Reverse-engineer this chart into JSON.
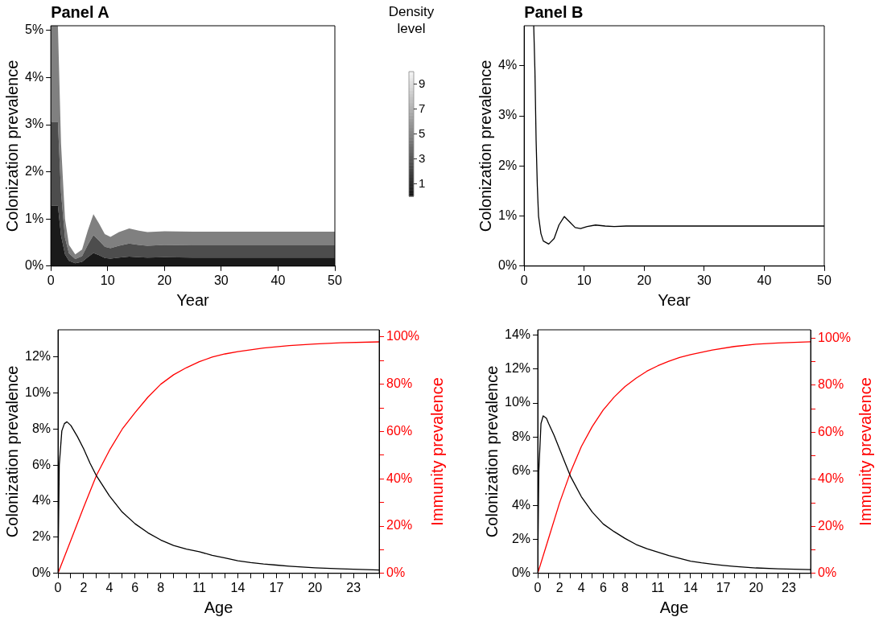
{
  "chart_data": [
    {
      "type": "area",
      "title": "Panel A",
      "xlabel": "Year",
      "ylabel": "Colonization prevalence",
      "stacked": true,
      "clabel": "Density level",
      "clim": [
        0,
        10
      ],
      "cticks": [
        1,
        3,
        5,
        7,
        9
      ],
      "x": [
        0,
        1.25,
        1.8,
        2.5,
        3.2,
        4.3,
        5.5,
        6.5,
        7.5,
        8.5,
        9.5,
        10.5,
        12,
        13.8,
        15.5,
        17,
        20,
        25,
        50
      ],
      "series": [
        {
          "color": "#1a1a1a",
          "values": [
            1.28,
            1.28,
            0.65,
            0.25,
            0.11,
            0.06,
            0.09,
            0.19,
            0.28,
            0.23,
            0.17,
            0.16,
            0.18,
            0.2,
            0.19,
            0.18,
            0.19,
            0.18,
            0.18
          ]
        },
        {
          "color": "#4d4d4d",
          "values": [
            1.78,
            1.78,
            0.91,
            0.35,
            0.16,
            0.09,
            0.12,
            0.26,
            0.38,
            0.31,
            0.24,
            0.22,
            0.25,
            0.28,
            0.26,
            0.25,
            0.26,
            0.26,
            0.26
          ]
        },
        {
          "color": "#808080",
          "values": [
            2.04,
            2.04,
            1.04,
            0.4,
            0.18,
            0.1,
            0.14,
            0.3,
            0.44,
            0.36,
            0.27,
            0.24,
            0.29,
            0.32,
            0.3,
            0.29,
            0.29,
            0.29,
            0.29
          ]
        }
      ],
      "xlim": [
        0,
        50
      ],
      "xticks": [
        0,
        10,
        20,
        30,
        40,
        50
      ],
      "ylim": [
        0,
        5.1
      ],
      "yticks": [
        {
          "value": 0,
          "label": "0%"
        },
        {
          "value": 1,
          "label": "1%"
        },
        {
          "value": 2,
          "label": "2%"
        },
        {
          "value": 3,
          "label": "3%"
        },
        {
          "value": 4,
          "label": "4%"
        },
        {
          "value": 5,
          "label": "5%"
        }
      ]
    },
    {
      "type": "line",
      "title": "Panel B",
      "xlabel": "Year",
      "ylabel": "Colonization prevalence",
      "series": [
        {
          "color": "#000000",
          "x": [
            1.6,
            1.8,
            2.0,
            2.2,
            2.4,
            2.8,
            3.2,
            4.1,
            5,
            5.8,
            6.7,
            7.6,
            8.5,
            9.4,
            10.5,
            11.9,
            13.5,
            15,
            17,
            50
          ],
          "values": [
            4.8,
            3.9,
            2.5,
            1.6,
            1.0,
            0.65,
            0.5,
            0.44,
            0.55,
            0.82,
            0.99,
            0.88,
            0.77,
            0.75,
            0.79,
            0.82,
            0.8,
            0.79,
            0.8,
            0.8
          ]
        }
      ],
      "xlim": [
        0,
        50
      ],
      "xticks": [
        0,
        10,
        20,
        30,
        40,
        50
      ],
      "ylim": [
        0,
        4.8
      ],
      "yticks": [
        {
          "value": 0,
          "label": "0%"
        },
        {
          "value": 1,
          "label": "1%"
        },
        {
          "value": 2,
          "label": "2%"
        },
        {
          "value": 3,
          "label": "3%"
        },
        {
          "value": 4,
          "label": "4%"
        }
      ]
    },
    {
      "type": "line",
      "xlabel": "Age",
      "ylabel": "Colonization prevalence",
      "y2label": "Immunity prevalence",
      "series": [
        {
          "color": "#000000",
          "x": [
            0,
            0.1,
            0.3,
            0.5,
            0.7,
            1,
            1.5,
            2,
            2.5,
            3,
            4,
            5,
            6,
            7,
            8,
            9,
            10,
            11,
            12,
            13,
            14,
            15,
            16,
            17,
            18,
            19,
            20,
            22,
            25
          ],
          "values": [
            0,
            6,
            7.9,
            8.3,
            8.4,
            8.2,
            7.6,
            6.9,
            6.1,
            5.4,
            4.3,
            3.4,
            2.75,
            2.25,
            1.85,
            1.55,
            1.35,
            1.2,
            1.0,
            0.85,
            0.7,
            0.6,
            0.52,
            0.46,
            0.4,
            0.35,
            0.31,
            0.25,
            0.19
          ]
        },
        {
          "color": "#ff0000",
          "axis": "y2",
          "x": [
            0,
            1,
            2,
            3,
            4,
            5,
            6,
            7,
            8,
            9,
            10,
            11,
            12,
            13,
            14,
            16,
            18,
            20,
            22,
            25
          ],
          "values": [
            0,
            14,
            28,
            41.5,
            52,
            61,
            68,
            74.5,
            80,
            84,
            87,
            89.5,
            91.5,
            92.8,
            93.8,
            95.3,
            96.3,
            97,
            97.5,
            97.9
          ]
        }
      ],
      "xlim": [
        0,
        25
      ],
      "xticks": [
        0,
        {
          "value": 1,
          "label": null
        },
        2,
        {
          "value": 3,
          "label": null
        },
        4,
        {
          "value": 5,
          "label": null
        },
        6,
        {
          "value": 7,
          "label": null
        },
        8,
        {
          "value": 9,
          "label": null
        },
        {
          "value": 10,
          "label": null
        },
        11,
        {
          "value": 12,
          "label": null
        },
        {
          "value": 13,
          "label": null
        },
        14,
        {
          "value": 15,
          "label": null
        },
        {
          "value": 16,
          "label": null
        },
        17,
        {
          "value": 18,
          "label": null
        },
        {
          "value": 19,
          "label": null
        },
        20,
        {
          "value": 21,
          "label": null
        },
        {
          "value": 22,
          "label": null
        },
        23,
        {
          "value": 24,
          "label": null
        },
        {
          "value": 25,
          "label": null
        }
      ],
      "ylim": [
        0,
        13.5
      ],
      "yticks": [
        {
          "value": 0,
          "label": "0%"
        },
        {
          "value": 2,
          "label": "2%"
        },
        {
          "value": 4,
          "label": "4%"
        },
        {
          "value": 6,
          "label": "6%"
        },
        {
          "value": 8,
          "label": "8%"
        },
        {
          "value": 10,
          "label": "10%"
        },
        {
          "value": 12,
          "label": "12%"
        }
      ],
      "y2lim": [
        0,
        103
      ],
      "y2ticks": [
        {
          "value": 0,
          "label": "0%"
        },
        {
          "value": 10,
          "label": null
        },
        {
          "value": 20,
          "label": "20%"
        },
        {
          "value": 30,
          "label": null
        },
        {
          "value": 40,
          "label": "40%"
        },
        {
          "value": 50,
          "label": null
        },
        {
          "value": 60,
          "label": "60%"
        },
        {
          "value": 70,
          "label": null
        },
        {
          "value": 80,
          "label": "80%"
        },
        {
          "value": 90,
          "label": null
        },
        {
          "value": 100,
          "label": "100%"
        }
      ]
    },
    {
      "type": "line",
      "xlabel": "Age",
      "ylabel": "Colonization prevalence",
      "y2label": "Immunity prevalence",
      "series": [
        {
          "color": "#000000",
          "x": [
            0,
            0.1,
            0.3,
            0.5,
            0.8,
            1,
            1.5,
            2,
            2.5,
            3,
            4,
            5,
            6,
            7,
            8,
            9,
            10,
            11,
            12,
            13,
            14,
            15,
            16,
            17,
            18,
            19,
            20,
            22,
            25
          ],
          "values": [
            0,
            6,
            8.8,
            9.25,
            9.1,
            8.8,
            8.1,
            7.3,
            6.5,
            5.7,
            4.5,
            3.6,
            2.9,
            2.45,
            2.05,
            1.7,
            1.45,
            1.25,
            1.05,
            0.88,
            0.72,
            0.62,
            0.54,
            0.47,
            0.41,
            0.36,
            0.32,
            0.27,
            0.22
          ]
        },
        {
          "color": "#ff0000",
          "axis": "y2",
          "x": [
            0,
            1,
            2,
            3,
            4,
            5,
            6,
            7,
            8,
            9,
            10,
            11,
            12,
            13,
            14,
            16,
            18,
            20,
            22,
            25
          ],
          "values": [
            0,
            15,
            30,
            43,
            54,
            62.5,
            69.5,
            75,
            79.5,
            83,
            86,
            88.3,
            90.2,
            91.8,
            93,
            95,
            96.5,
            97.5,
            98,
            98.5
          ]
        }
      ],
      "xlim": [
        0,
        25
      ],
      "xticks": [
        0,
        {
          "value": 1,
          "label": null
        },
        2,
        {
          "value": 3,
          "label": null
        },
        4,
        {
          "value": 5,
          "label": null
        },
        6,
        {
          "value": 7,
          "label": null
        },
        8,
        {
          "value": 9,
          "label": null
        },
        {
          "value": 10,
          "label": null
        },
        11,
        {
          "value": 12,
          "label": null
        },
        {
          "value": 13,
          "label": null
        },
        14,
        {
          "value": 15,
          "label": null
        },
        {
          "value": 16,
          "label": null
        },
        17,
        {
          "value": 18,
          "label": null
        },
        {
          "value": 19,
          "label": null
        },
        20,
        {
          "value": 21,
          "label": null
        },
        {
          "value": 22,
          "label": null
        },
        23,
        {
          "value": 24,
          "label": null
        },
        {
          "value": 25,
          "label": null
        }
      ],
      "ylim": [
        0,
        14.3
      ],
      "yticks": [
        {
          "value": 0,
          "label": "0%"
        },
        {
          "value": 2,
          "label": "2%"
        },
        {
          "value": 4,
          "label": "4%"
        },
        {
          "value": 6,
          "label": "6%"
        },
        {
          "value": 8,
          "label": "8%"
        },
        {
          "value": 10,
          "label": "10%"
        },
        {
          "value": 12,
          "label": "12%"
        },
        {
          "value": 14,
          "label": "14%"
        }
      ],
      "y2lim": [
        0,
        103.6
      ],
      "y2ticks": [
        {
          "value": 0,
          "label": "0%"
        },
        {
          "value": 10,
          "label": null
        },
        {
          "value": 20,
          "label": "20%"
        },
        {
          "value": 30,
          "label": null
        },
        {
          "value": 40,
          "label": "40%"
        },
        {
          "value": 50,
          "label": null
        },
        {
          "value": 60,
          "label": "60%"
        },
        {
          "value": 70,
          "label": null
        },
        {
          "value": 80,
          "label": "80%"
        },
        {
          "value": 90,
          "label": null
        },
        {
          "value": 100,
          "label": "100%"
        }
      ]
    }
  ]
}
